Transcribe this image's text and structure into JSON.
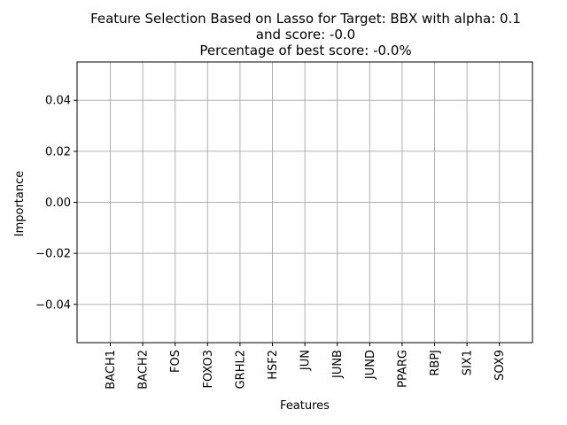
{
  "chart_data": {
    "type": "bar",
    "title_lines": [
      "Feature Selection Based on Lasso for Target: BBX with alpha: 0.1",
      "and score: -0.0",
      " Percentage of best score: -0.0%"
    ],
    "xlabel": "Features",
    "ylabel": "Importance",
    "categories": [
      "BACH1",
      "BACH2",
      "FOS",
      "FOXO3",
      "GRHL2",
      "HSF2",
      "JUN",
      "JUNB",
      "JUND",
      "PPARG",
      "RBPJ",
      "SIX1",
      "SOX9"
    ],
    "values": [
      0,
      0,
      0,
      0,
      0,
      0,
      0,
      0,
      0,
      0,
      0,
      0,
      0
    ],
    "yticks": [
      -0.04,
      -0.02,
      0.0,
      0.02,
      0.04
    ],
    "ytick_labels": [
      "−0.04",
      "−0.02",
      "0.00",
      "0.02",
      "0.04"
    ],
    "ylim": [
      -0.055,
      0.055
    ],
    "grid": true,
    "colors": {
      "grid": "#b0b0b0",
      "axes": "#000000",
      "bar": "#1f77b4"
    }
  }
}
